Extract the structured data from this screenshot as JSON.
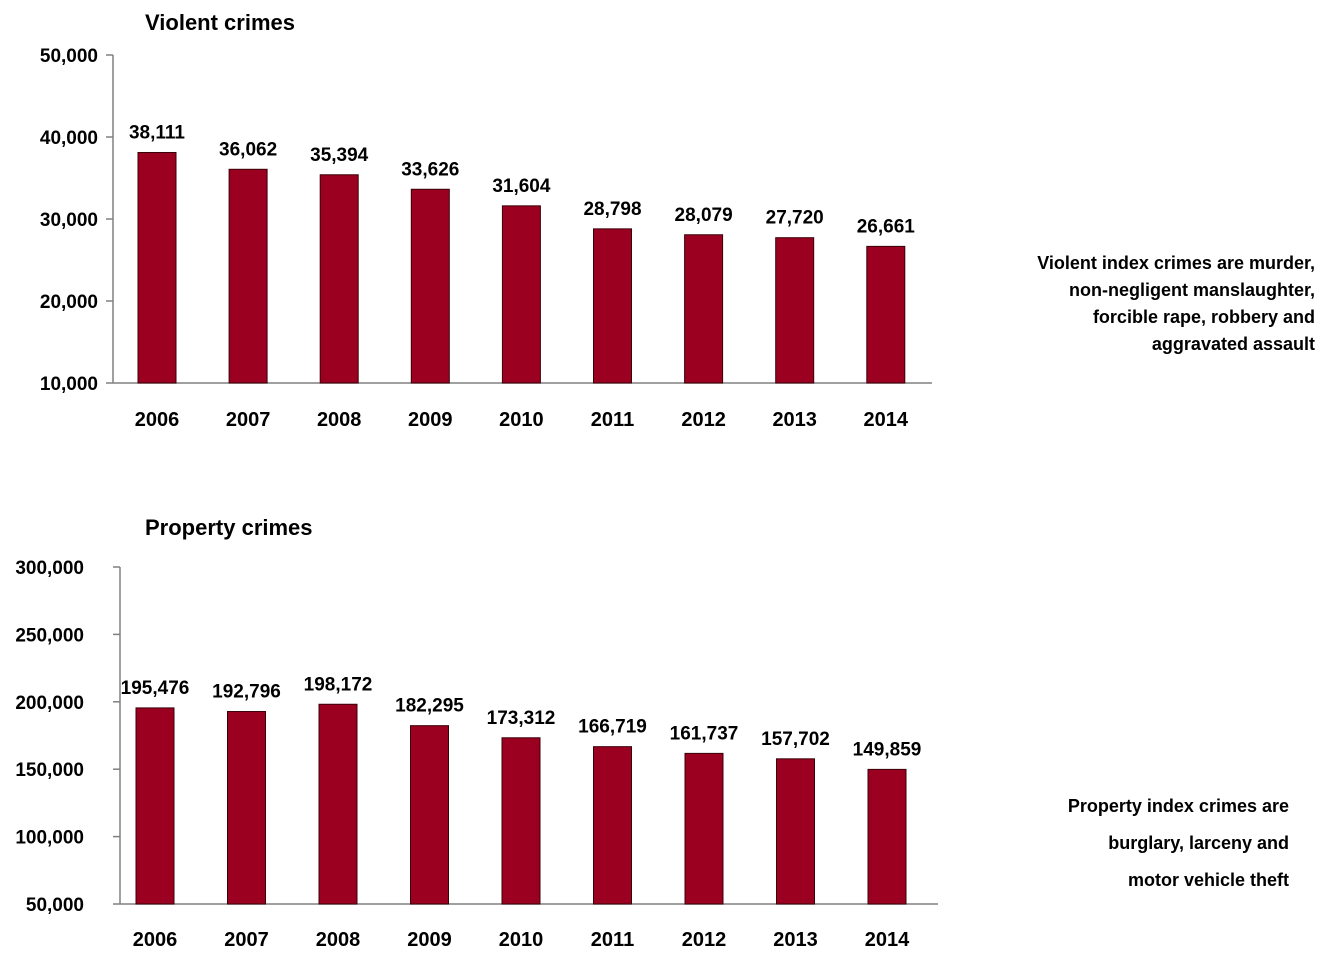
{
  "colors": {
    "bar": "#9b0020",
    "bar_edge": "#3a0008",
    "axis": "#808080",
    "text": "#000000"
  },
  "chart_data": [
    {
      "type": "bar",
      "title": "Violent crimes",
      "categories": [
        "2006",
        "2007",
        "2008",
        "2009",
        "2010",
        "2011",
        "2012",
        "2013",
        "2014"
      ],
      "values": [
        38111,
        36062,
        35394,
        33626,
        31604,
        28798,
        28079,
        27720,
        26661
      ],
      "value_labels": [
        "38,111",
        "36,062",
        "35,394",
        "33,626",
        "31,604",
        "28,798",
        "28,079",
        "27,720",
        "26,661"
      ],
      "ylim": [
        10000,
        50000
      ],
      "yticks": [
        10000,
        20000,
        30000,
        40000,
        50000
      ],
      "ytick_labels": [
        "10,000",
        "20,000",
        "30,000",
        "40,000",
        "50,000"
      ],
      "grid": false,
      "legend": "none",
      "note_lines": [
        "Violent index crimes are murder,",
        "non-negligent manslaughter,",
        "forcible rape, robbery and",
        "aggravated assault"
      ]
    },
    {
      "type": "bar",
      "title": "Property crimes",
      "categories": [
        "2006",
        "2007",
        "2008",
        "2009",
        "2010",
        "2011",
        "2012",
        "2013",
        "2014"
      ],
      "values": [
        195476,
        192796,
        198172,
        182295,
        173312,
        166719,
        161737,
        157702,
        149859
      ],
      "value_labels": [
        "195,476",
        "192,796",
        "198,172",
        "182,295",
        "173,312",
        "166,719",
        "161,737",
        "157,702",
        "149,859"
      ],
      "ylim": [
        50000,
        300000
      ],
      "yticks": [
        50000,
        100000,
        150000,
        200000,
        250000,
        300000
      ],
      "ytick_labels": [
        "50,000",
        "100,000",
        "150,000",
        "200,000",
        "250,000",
        "300,000"
      ],
      "grid": false,
      "legend": "none",
      "note_lines": [
        "Property index crimes are",
        "burglary, larceny and",
        "motor vehicle theft"
      ]
    }
  ]
}
